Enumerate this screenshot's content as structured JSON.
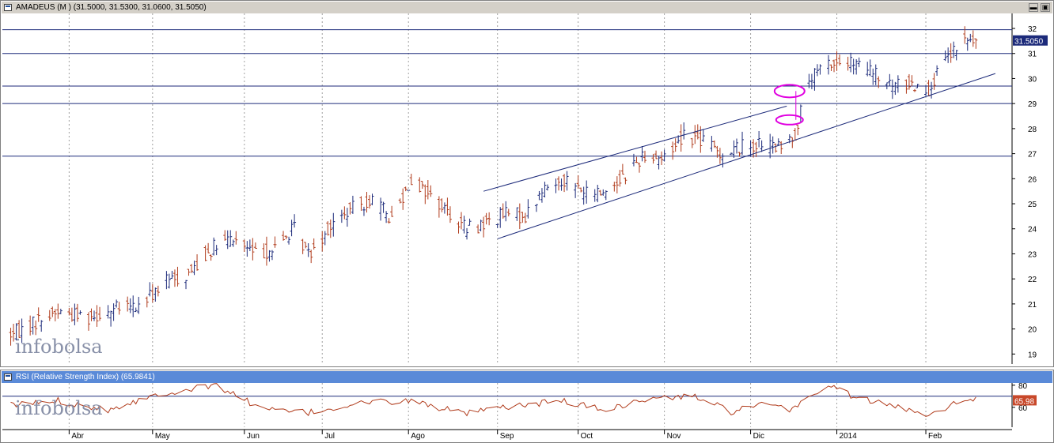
{
  "main_panel": {
    "title": "AMADEUS (M ) (31.5000, 31.5300, 31.0600, 31.5050)",
    "last_price_badge": "31.5050",
    "watermark": "infobolsa",
    "minimize_label": "▬",
    "restore_label": "▣"
  },
  "rsi_panel": {
    "title": "RSI (Relative Strength Index) (65.9841)",
    "last_value_badge": "65.98",
    "watermark": "infobolsa"
  },
  "colors": {
    "up_bar": "#1c2a7a",
    "down_bar": "#b03a1a",
    "trendline": "#1c2a7a",
    "highlight_ellipse": "#e000e0",
    "rsi_line": "#b03a1a",
    "price_badge": "#1c2a7a",
    "rsi_badge": "#c8482a"
  },
  "chart_data": [
    {
      "type": "ohlc",
      "y_ticks": [
        19,
        20,
        21,
        22,
        23,
        24,
        25,
        26,
        27,
        28,
        29,
        30,
        31,
        32
      ],
      "ylim": [
        18.6,
        32.6
      ],
      "x_months": [
        "Abr",
        "May",
        "Jun",
        "Jul",
        "Ago",
        "Sep",
        "Oct",
        "Nov",
        "Dic",
        "2014",
        "Feb"
      ],
      "horizontal_levels": [
        31.95,
        31.0,
        29.7,
        29.0,
        26.9
      ],
      "closing_path": [
        {
          "d": "2013-03-12",
          "v": 19.8
        },
        {
          "d": "2013-03-20",
          "v": 20.3
        },
        {
          "d": "2013-03-28",
          "v": 20.7
        },
        {
          "d": "2013-04-08",
          "v": 20.5
        },
        {
          "d": "2013-04-18",
          "v": 20.8
        },
        {
          "d": "2013-04-26",
          "v": 20.9
        },
        {
          "d": "2013-05-06",
          "v": 21.9
        },
        {
          "d": "2013-05-13",
          "v": 22.1
        },
        {
          "d": "2013-05-22",
          "v": 23.2
        },
        {
          "d": "2013-05-30",
          "v": 23.6
        },
        {
          "d": "2013-06-07",
          "v": 23.0
        },
        {
          "d": "2013-06-14",
          "v": 23.2
        },
        {
          "d": "2013-06-21",
          "v": 24.0
        },
        {
          "d": "2013-06-26",
          "v": 23.0
        },
        {
          "d": "2013-07-03",
          "v": 24.0
        },
        {
          "d": "2013-07-12",
          "v": 24.8
        },
        {
          "d": "2013-07-19",
          "v": 25.2
        },
        {
          "d": "2013-07-26",
          "v": 24.4
        },
        {
          "d": "2013-08-02",
          "v": 26.0
        },
        {
          "d": "2013-08-12",
          "v": 25.0
        },
        {
          "d": "2013-08-22",
          "v": 24.0
        },
        {
          "d": "2013-08-28",
          "v": 24.2
        },
        {
          "d": "2013-09-05",
          "v": 24.6
        },
        {
          "d": "2013-09-12",
          "v": 24.5
        },
        {
          "d": "2013-09-19",
          "v": 25.6
        },
        {
          "d": "2013-09-26",
          "v": 26.0
        },
        {
          "d": "2013-10-04",
          "v": 25.4
        },
        {
          "d": "2013-10-11",
          "v": 25.5
        },
        {
          "d": "2013-10-18",
          "v": 26.2
        },
        {
          "d": "2013-10-25",
          "v": 27.0
        },
        {
          "d": "2013-11-01",
          "v": 26.8
        },
        {
          "d": "2013-11-08",
          "v": 27.8
        },
        {
          "d": "2013-11-15",
          "v": 27.5
        },
        {
          "d": "2013-11-22",
          "v": 27.0
        },
        {
          "d": "2013-11-29",
          "v": 27.3
        },
        {
          "d": "2013-12-06",
          "v": 27.4
        },
        {
          "d": "2013-12-13",
          "v": 27.2
        },
        {
          "d": "2013-12-18",
          "v": 27.8
        },
        {
          "d": "2013-12-23",
          "v": 29.9
        },
        {
          "d": "2013-12-30",
          "v": 30.6
        },
        {
          "d": "2014-01-07",
          "v": 30.6
        },
        {
          "d": "2014-01-14",
          "v": 30.3
        },
        {
          "d": "2014-01-21",
          "v": 29.7
        },
        {
          "d": "2014-01-28",
          "v": 29.8
        },
        {
          "d": "2014-02-04",
          "v": 29.6
        },
        {
          "d": "2014-02-11",
          "v": 30.8
        },
        {
          "d": "2014-02-17",
          "v": 31.5
        },
        {
          "d": "2014-02-21",
          "v": 31.5
        }
      ],
      "trendlines": [
        {
          "from": {
            "d": "2013-08-28",
            "v": 25.5
          },
          "to": {
            "d": "2013-12-15",
            "v": 28.9
          }
        },
        {
          "from": {
            "d": "2013-09-02",
            "v": 23.6
          },
          "to": {
            "d": "2014-02-28",
            "v": 30.2
          }
        }
      ],
      "highlight_ellipses": [
        {
          "d": "2013-12-16",
          "v": 29.5
        },
        {
          "d": "2013-12-16",
          "v": 28.35
        }
      ]
    },
    {
      "type": "line",
      "title": "RSI (Relative Strength Index) (65.9841)",
      "y_ticks": [
        60,
        80
      ],
      "ylim": [
        42,
        82
      ],
      "horizontal_levels": [
        70
      ],
      "last_value": 65.98,
      "values_path": [
        {
          "d": "2013-03-12",
          "v": 62
        },
        {
          "d": "2013-03-28",
          "v": 66
        },
        {
          "d": "2013-04-15",
          "v": 58
        },
        {
          "d": "2013-05-03",
          "v": 72
        },
        {
          "d": "2013-05-24",
          "v": 80
        },
        {
          "d": "2013-06-10",
          "v": 58
        },
        {
          "d": "2013-06-26",
          "v": 55
        },
        {
          "d": "2013-07-15",
          "v": 64
        },
        {
          "d": "2013-08-02",
          "v": 66
        },
        {
          "d": "2013-08-21",
          "v": 54
        },
        {
          "d": "2013-09-05",
          "v": 60
        },
        {
          "d": "2013-09-25",
          "v": 66
        },
        {
          "d": "2013-10-10",
          "v": 58
        },
        {
          "d": "2013-10-28",
          "v": 68
        },
        {
          "d": "2013-11-12",
          "v": 70
        },
        {
          "d": "2013-11-25",
          "v": 56
        },
        {
          "d": "2013-12-06",
          "v": 62
        },
        {
          "d": "2013-12-16",
          "v": 58
        },
        {
          "d": "2013-12-30",
          "v": 80
        },
        {
          "d": "2014-01-10",
          "v": 68
        },
        {
          "d": "2014-01-24",
          "v": 60
        },
        {
          "d": "2014-02-04",
          "v": 54
        },
        {
          "d": "2014-02-18",
          "v": 68
        },
        {
          "d": "2014-02-24",
          "v": 66
        }
      ]
    }
  ]
}
